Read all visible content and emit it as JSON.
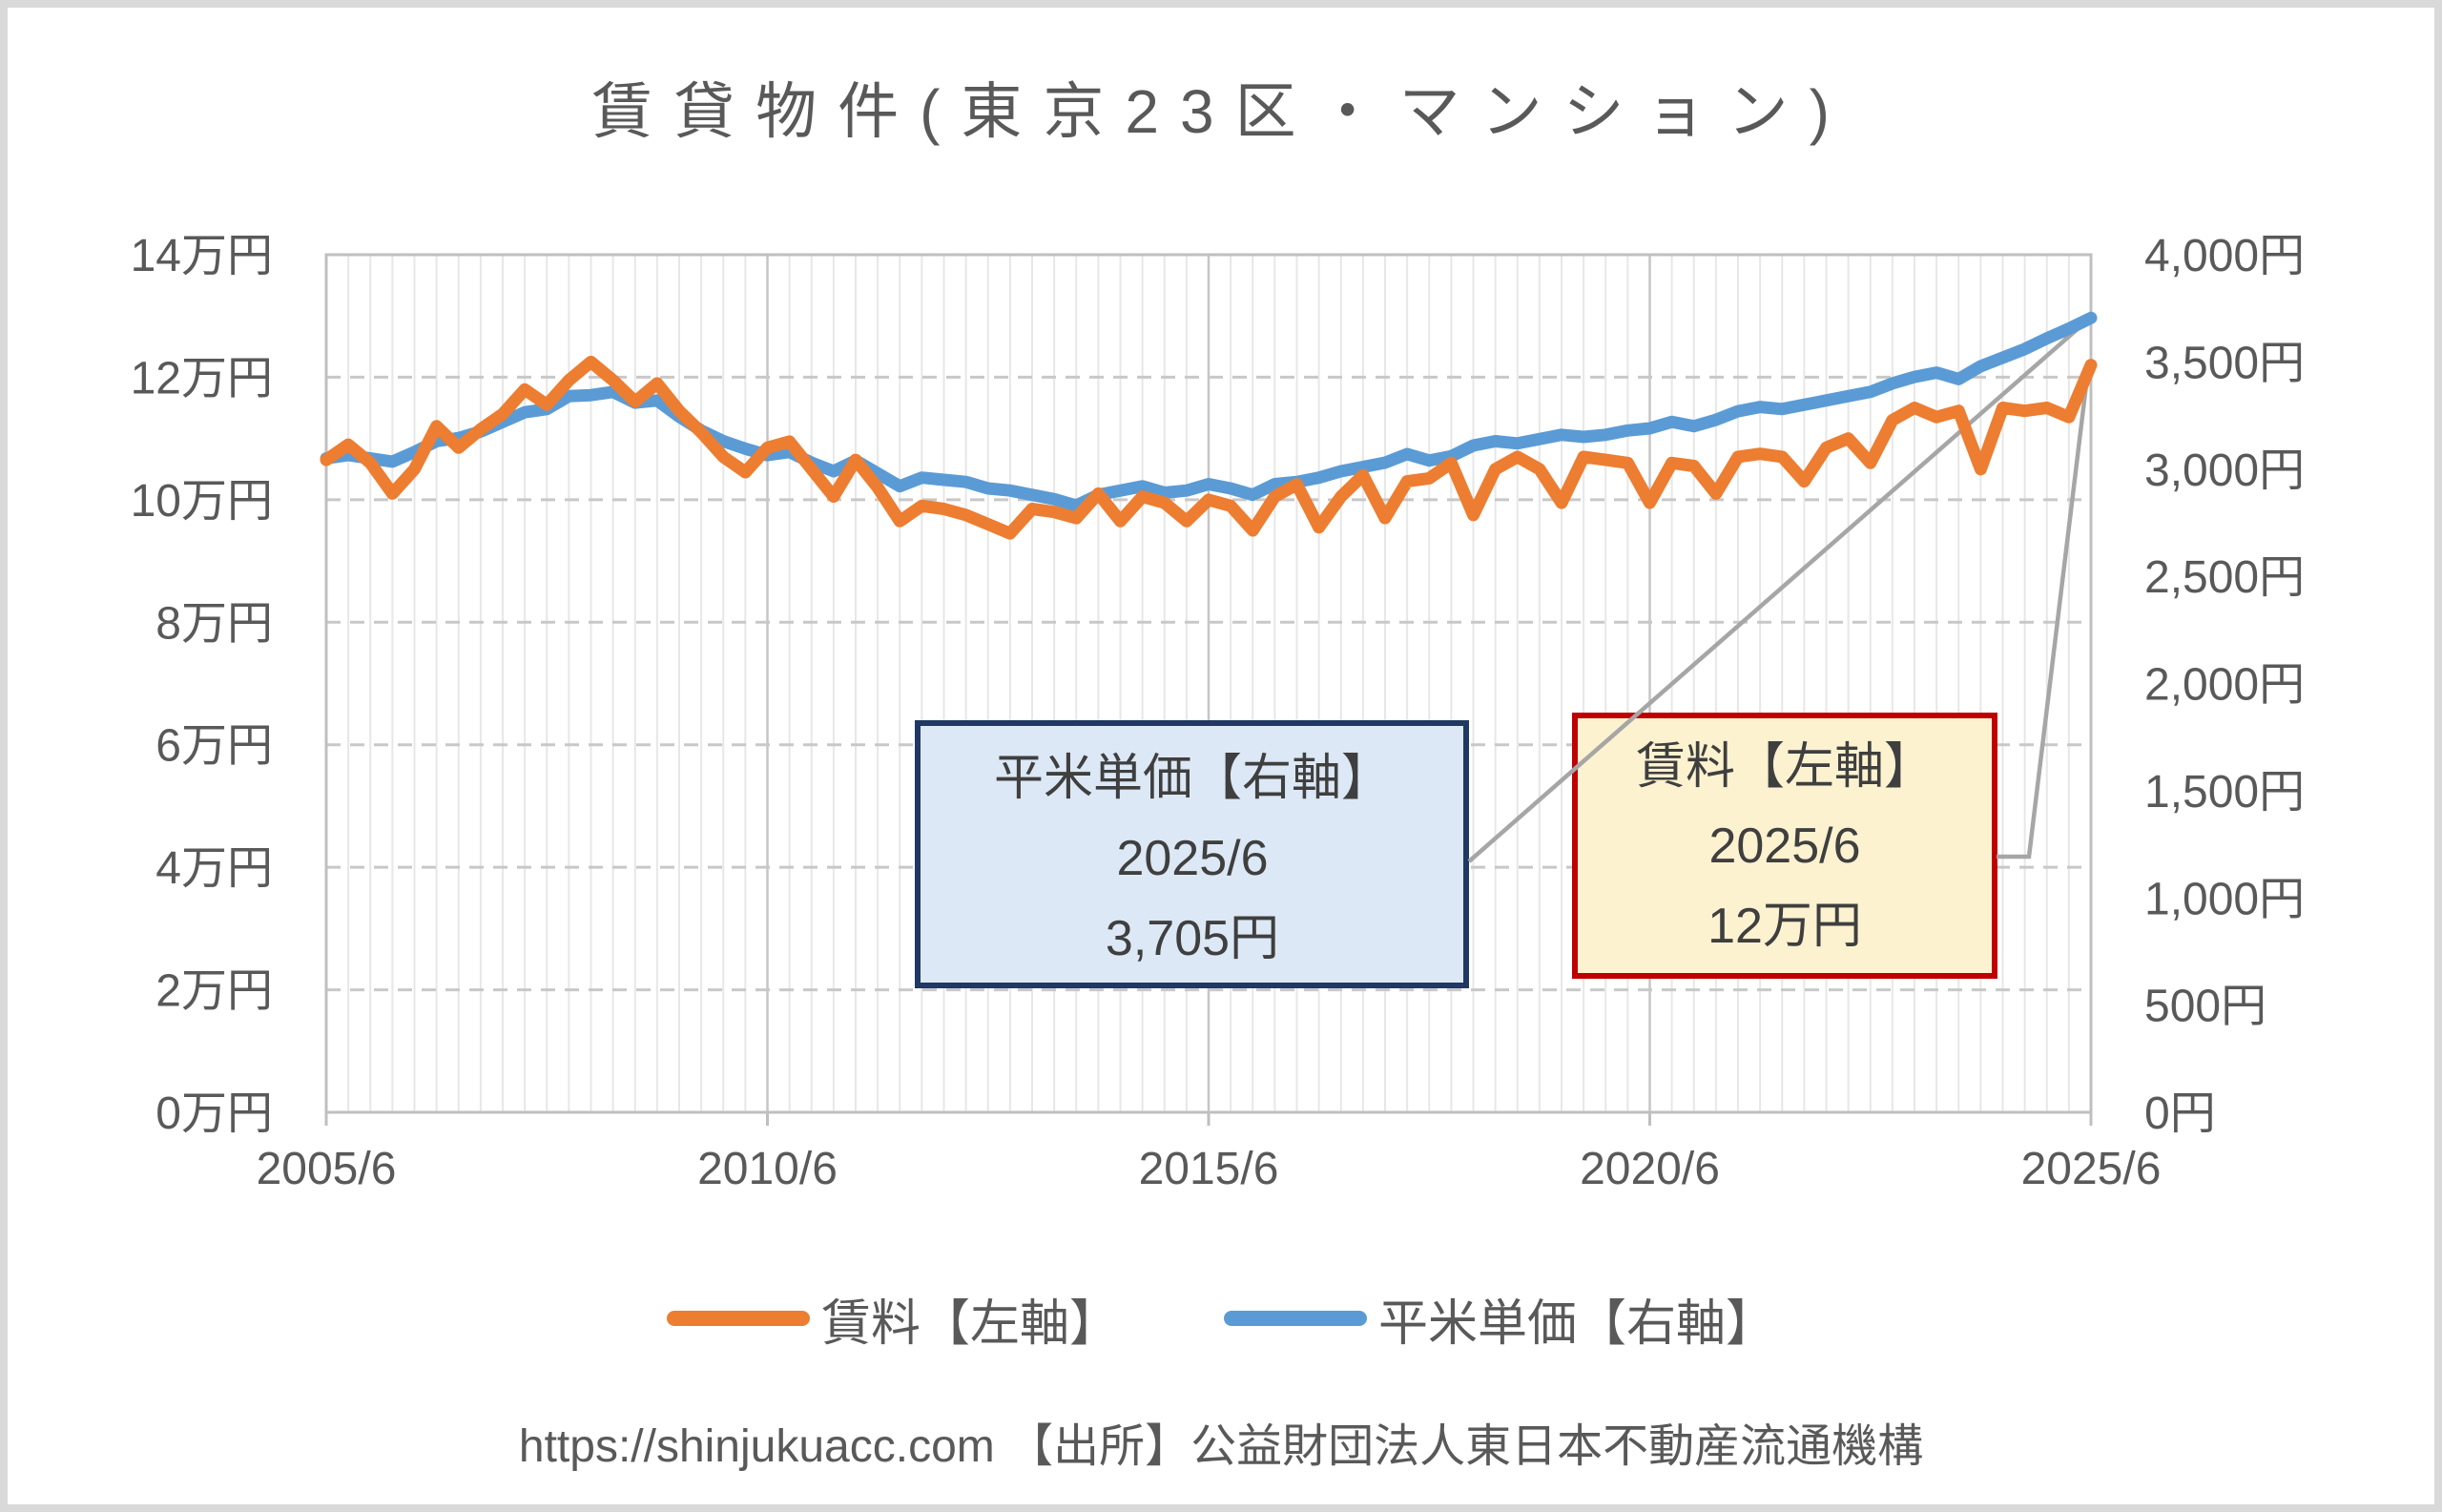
{
  "title": "賃貸物件(東京23区・マンション)",
  "footer": "https://shinjukuacc.com 【出所】公益財団法人東日本不動産流通機構",
  "legend": [
    {
      "label": "賃料【左軸】",
      "color": "#ED7D31"
    },
    {
      "label": "平米単価【右軸】",
      "color": "#5B9BD5"
    }
  ],
  "callouts": {
    "unit_price": {
      "line1": "平米単価【右軸】",
      "line2": "2025/6",
      "line3": "3,705円"
    },
    "rent": {
      "line1": "賃料【左軸】",
      "line2": "2025/6",
      "line3": "12万円"
    }
  },
  "axes": {
    "left": {
      "labels": [
        "14万円",
        "12万円",
        "10万円",
        "8万円",
        "6万円",
        "4万円",
        "2万円",
        "0万円"
      ]
    },
    "right": {
      "labels": [
        "4,000円",
        "3,500円",
        "3,000円",
        "2,500円",
        "2,000円",
        "1,500円",
        "1,000円",
        "500円",
        "0円"
      ]
    },
    "x": {
      "labels": [
        "2005/6",
        "2010/6",
        "2015/6",
        "2020/6",
        "2025/6"
      ]
    }
  },
  "colors": {
    "rent_line": "#ED7D31",
    "unit_price_line": "#5B9BD5",
    "leader_line": "#A6A6A6",
    "grid_minor": "#E7E7E7",
    "grid_major": "#C6C6C6",
    "plot_border": "#BFBFBF",
    "text": "#595959",
    "callout_unit_bg": "#DCE8F5",
    "callout_unit_border": "#1F3864",
    "callout_rent_bg": "#FCF2D0",
    "callout_rent_border": "#C00000",
    "outer_frame": "#D9D9D9"
  },
  "chart_data": {
    "type": "line",
    "title": "賃貸物件(東京23区・マンション)",
    "frequency": "quarterly",
    "x_start": "2005/6",
    "x_end": "2025/6",
    "x_tick_labels": [
      "2005/6",
      "2010/6",
      "2015/6",
      "2020/6",
      "2025/6"
    ],
    "left_axis": {
      "label": "賃料",
      "unit": "万円",
      "min": 0,
      "max": 14,
      "tick_step": 2
    },
    "right_axis": {
      "label": "平米単価",
      "unit": "円",
      "min": 0,
      "max": 4000,
      "tick_step": 500
    },
    "grid": true,
    "legend_position": "bottom",
    "series": [
      {
        "name": "賃料【左軸】",
        "axis": "left",
        "unit": "万円",
        "color": "#ED7D31",
        "values": [
          10.65,
          10.9,
          10.6,
          10.1,
          10.5,
          11.2,
          10.85,
          11.15,
          11.4,
          11.8,
          11.55,
          11.95,
          12.25,
          11.95,
          11.6,
          11.9,
          11.45,
          11.1,
          10.7,
          10.45,
          10.85,
          10.95,
          10.5,
          10.05,
          10.65,
          10.2,
          9.65,
          9.9,
          9.85,
          9.75,
          9.6,
          9.45,
          9.85,
          9.8,
          9.7,
          10.1,
          9.65,
          10.05,
          9.95,
          9.65,
          10.0,
          9.9,
          9.5,
          10.05,
          10.25,
          9.55,
          10.05,
          10.4,
          9.7,
          10.3,
          10.35,
          10.6,
          9.75,
          10.5,
          10.7,
          10.5,
          9.95,
          10.7,
          10.65,
          10.6,
          9.95,
          10.6,
          10.55,
          10.1,
          10.7,
          10.75,
          10.7,
          10.3,
          10.85,
          11.0,
          10.6,
          11.3,
          11.5,
          11.35,
          11.45,
          10.5,
          11.5,
          11.45,
          11.5,
          11.35,
          12.2
        ]
      },
      {
        "name": "平米単価【右軸】",
        "axis": "right",
        "unit": "円",
        "color": "#5B9BD5",
        "values": [
          3050,
          3065,
          3050,
          3035,
          3080,
          3130,
          3145,
          3175,
          3220,
          3265,
          3280,
          3340,
          3345,
          3360,
          3310,
          3320,
          3245,
          3180,
          3130,
          3095,
          3065,
          3080,
          3030,
          2990,
          3040,
          2980,
          2920,
          2960,
          2950,
          2940,
          2910,
          2900,
          2880,
          2860,
          2830,
          2880,
          2900,
          2920,
          2890,
          2900,
          2930,
          2910,
          2880,
          2930,
          2940,
          2960,
          2990,
          3010,
          3030,
          3070,
          3040,
          3060,
          3110,
          3130,
          3120,
          3140,
          3160,
          3150,
          3160,
          3180,
          3190,
          3220,
          3200,
          3230,
          3270,
          3290,
          3280,
          3300,
          3320,
          3340,
          3360,
          3400,
          3430,
          3450,
          3420,
          3480,
          3520,
          3560,
          3610,
          3655,
          3705
        ]
      }
    ],
    "annotations": [
      {
        "target": "平米単価",
        "text": [
          "平米単価【右軸】",
          "2025/6",
          "3,705円"
        ]
      },
      {
        "target": "賃料",
        "text": [
          "賃料【左軸】",
          "2025/6",
          "12万円"
        ]
      }
    ],
    "final_values": {
      "rent": "12万円",
      "unit_price": "3,705円"
    }
  }
}
